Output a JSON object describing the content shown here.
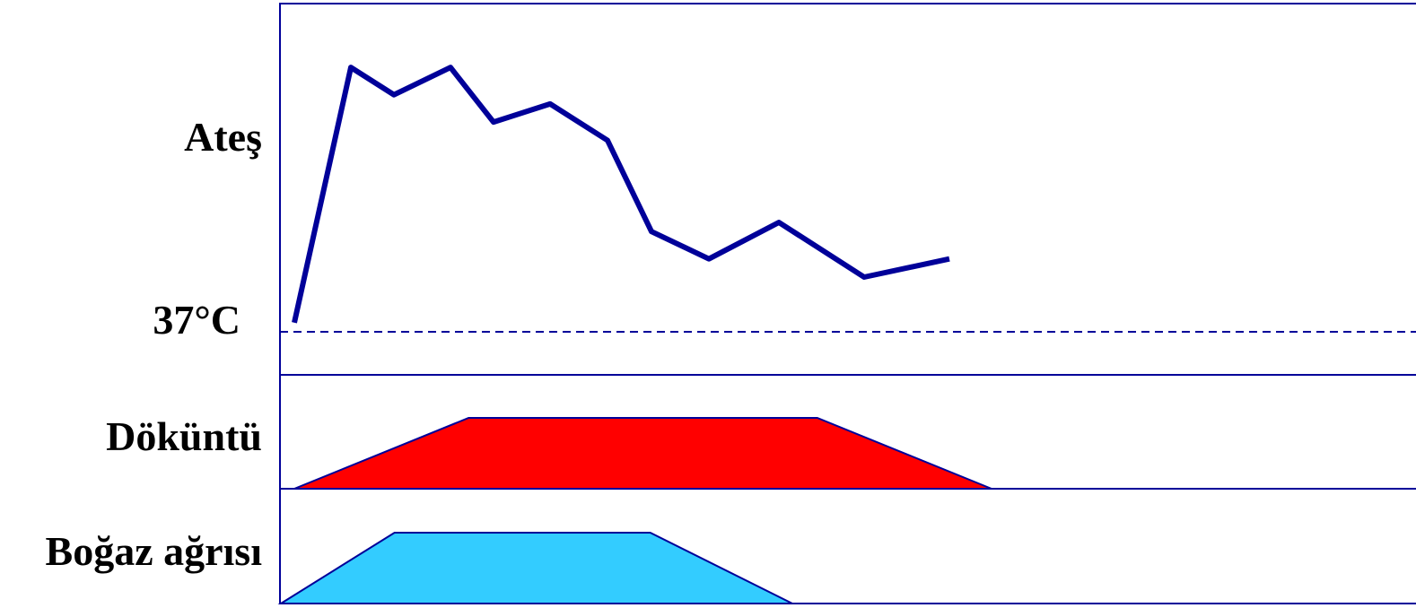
{
  "chart_data": {
    "type": "line",
    "labels": {
      "fever": "Ateş",
      "baseline": "37°C",
      "rash": "Döküntü",
      "sore_throat": "Boğaz ağrısı"
    },
    "fever_series": {
      "baseline_value": 37,
      "x": [
        0,
        1,
        2,
        3,
        4,
        5,
        6,
        7,
        8,
        9,
        10,
        11
      ],
      "values": [
        37.1,
        39.9,
        39.6,
        39.9,
        39.3,
        39.5,
        39.1,
        38.1,
        37.8,
        38.2,
        37.6,
        37.8
      ]
    },
    "rash_series": {
      "x": [
        0,
        3,
        9,
        12
      ],
      "values": [
        0,
        1,
        1,
        0
      ]
    },
    "sore_throat_series": {
      "x": [
        0,
        2,
        6.5,
        9
      ],
      "values": [
        0,
        1,
        1,
        0
      ]
    },
    "colors": {
      "frame": "#000099",
      "fever_line": "#000099",
      "rash_fill": "#ff0000",
      "sore_throat_fill": "#33ccff"
    },
    "grid": false,
    "legend": "none"
  }
}
